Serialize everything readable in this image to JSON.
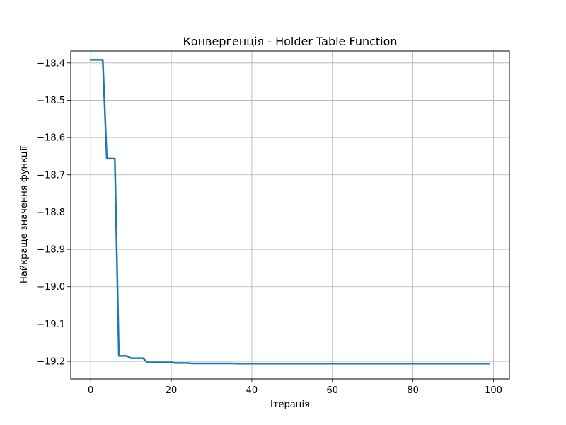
{
  "chart_data": {
    "type": "line",
    "title": "Конвергенція - Holder Table Function",
    "xlabel": "Ітерація",
    "ylabel": "Найкраще значення функції",
    "xlim": [
      -4.95,
      103.95
    ],
    "ylim": [
      -19.2474,
      -18.3681
    ],
    "xticks": [
      0,
      20,
      40,
      60,
      80,
      100
    ],
    "yticks": [
      -18.4,
      -18.5,
      -18.6,
      -18.7,
      -18.8,
      -18.9,
      -19.0,
      -19.1,
      -19.2
    ],
    "ytick_labels": [
      "−18.4",
      "−18.5",
      "−18.6",
      "−18.7",
      "−18.8",
      "−18.9",
      "−19.0",
      "−19.1",
      "−19.2"
    ],
    "grid": true,
    "series": [
      {
        "color": "#1f77b4",
        "x": [
          0,
          3,
          4,
          6,
          7,
          9,
          10,
          13,
          14,
          20,
          21,
          24,
          25,
          35,
          36,
          99
        ],
        "y": [
          -18.3917,
          -18.3917,
          -18.6566,
          -18.6566,
          -19.1855,
          -19.1855,
          -19.1915,
          -19.1915,
          -19.203,
          -19.203,
          -19.2045,
          -19.2045,
          -19.2055,
          -19.2055,
          -19.2062,
          -19.2062
        ]
      }
    ]
  }
}
